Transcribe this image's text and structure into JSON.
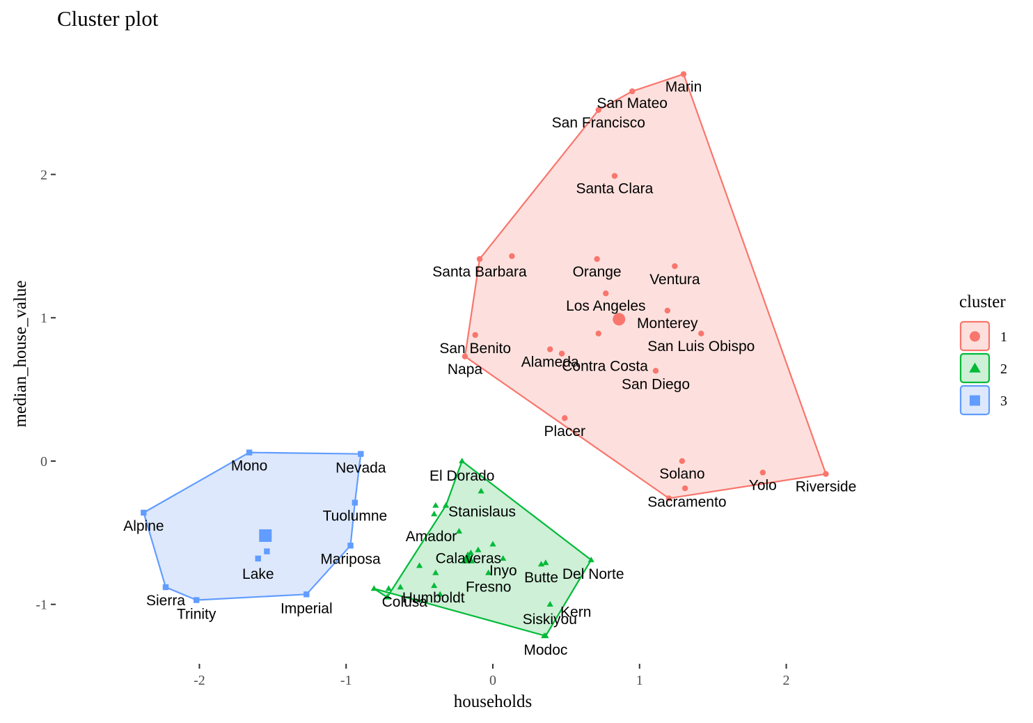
{
  "chart_data": {
    "type": "scatter",
    "title": "Cluster plot",
    "xlabel": "households",
    "ylabel": "median_house_value",
    "xlim": [
      -2.97,
      2.97
    ],
    "ylim": [
      -1.4,
      2.95
    ],
    "xticks": [
      -2,
      -1,
      0,
      1,
      2
    ],
    "yticks": [
      -1,
      0,
      1,
      2
    ],
    "xtick_labels": [
      "-2",
      "-1",
      "0",
      "1",
      "2"
    ],
    "ytick_labels": [
      "-1",
      "0",
      "1",
      "2"
    ],
    "grid": false,
    "legend": {
      "title": "cluster",
      "placement": "right",
      "entries": [
        {
          "label": "1",
          "color": "#F8766D",
          "fill": "#FDE0DD",
          "shape": "circle"
        },
        {
          "label": "2",
          "color": "#00BA38",
          "fill": "#CDF0D6",
          "shape": "triangle"
        },
        {
          "label": "3",
          "color": "#619CFF",
          "fill": "#DDE8FD",
          "shape": "square"
        }
      ]
    },
    "clusters": [
      {
        "name": "1",
        "shape": "circle",
        "color": "#F8766D",
        "fill": "#FDE0DD",
        "center": {
          "x": 0.86,
          "y": 0.99
        },
        "hull": [
          "Marin",
          "Riverside",
          "Sacramento",
          "Napa",
          "Santa Barbara",
          "San Francisco",
          "San Mateo"
        ],
        "points": [
          {
            "label": "Marin",
            "x": 1.3,
            "y": 2.7
          },
          {
            "label": "San Mateo",
            "x": 0.95,
            "y": 2.58
          },
          {
            "label": "San Francisco",
            "x": 0.72,
            "y": 2.45
          },
          {
            "label": "Santa Clara",
            "x": 0.83,
            "y": 1.99
          },
          {
            "label": "Santa Barbara",
            "x": -0.09,
            "y": 1.41
          },
          {
            "label": "",
            "x": 0.13,
            "y": 1.43
          },
          {
            "label": "Orange",
            "x": 0.71,
            "y": 1.41
          },
          {
            "label": "Ventura",
            "x": 1.24,
            "y": 1.36
          },
          {
            "label": "Los Angeles",
            "x": 0.77,
            "y": 1.17
          },
          {
            "label": "Monterey",
            "x": 1.19,
            "y": 1.05
          },
          {
            "label": "San Luis Obispo",
            "x": 1.42,
            "y": 0.89
          },
          {
            "label": "",
            "x": 0.72,
            "y": 0.89
          },
          {
            "label": "San Benito",
            "x": -0.12,
            "y": 0.88
          },
          {
            "label": "Contra Costa",
            "x": 0.47,
            "y": 0.75
          },
          {
            "label": "Alameda",
            "x": 0.39,
            "y": 0.78
          },
          {
            "label": "Napa",
            "x": -0.19,
            "y": 0.73
          },
          {
            "label": "San Diego",
            "x": 1.11,
            "y": 0.63
          },
          {
            "label": "Placer",
            "x": 0.49,
            "y": 0.3
          },
          {
            "label": "Solano",
            "x": 1.29,
            "y": 0.0
          },
          {
            "label": "Yolo",
            "x": 1.84,
            "y": -0.08
          },
          {
            "label": "Riverside",
            "x": 2.27,
            "y": -0.09
          },
          {
            "label": "",
            "x": 1.31,
            "y": -0.19
          },
          {
            "label": "Sacramento",
            "x": 1.2,
            "y": -0.26
          }
        ]
      },
      {
        "name": "2",
        "shape": "triangle",
        "color": "#00BA38",
        "fill": "#CDF0D6",
        "center": {
          "x": -0.17,
          "y": -0.68
        },
        "hull": [
          "El Dorado",
          "Del Norte",
          "Modoc",
          "Colusa",
          "",
          "Stanislaus"
        ],
        "points": [
          {
            "label": "El Dorado",
            "x": -0.21,
            "y": 0.0
          },
          {
            "label": "",
            "x": -0.08,
            "y": -0.21
          },
          {
            "label": "Stanislaus",
            "x": -0.32,
            "y": -0.31
          },
          {
            "label": "",
            "x": -0.39,
            "y": -0.31
          },
          {
            "label": "",
            "x": -0.4,
            "y": -0.37
          },
          {
            "label": "Amador",
            "x": -0.23,
            "y": -0.49
          },
          {
            "label": "",
            "x": 0.0,
            "y": -0.58
          },
          {
            "label": "Calaveras",
            "x": -0.1,
            "y": -0.62
          },
          {
            "label": "",
            "x": -0.15,
            "y": -0.64
          },
          {
            "label": "Inyo",
            "x": 0.07,
            "y": -0.68
          },
          {
            "label": "",
            "x": -0.5,
            "y": -0.73
          },
          {
            "label": "Butte",
            "x": 0.33,
            "y": -0.72
          },
          {
            "label": "",
            "x": 0.36,
            "y": -0.71
          },
          {
            "label": "Del Norte",
            "x": 0.67,
            "y": -0.69
          },
          {
            "label": "",
            "x": -0.39,
            "y": -0.78
          },
          {
            "label": "Fresno",
            "x": -0.03,
            "y": -0.78
          },
          {
            "label": "Humboldt",
            "x": -0.4,
            "y": -0.87
          },
          {
            "label": "",
            "x": -0.63,
            "y": -0.88
          },
          {
            "label": "",
            "x": -0.71,
            "y": -0.89
          },
          {
            "label": "Colusa",
            "x": -0.81,
            "y": -0.89
          },
          {
            "label": "",
            "x": -0.36,
            "y": -0.93
          },
          {
            "label": "",
            "x": -0.72,
            "y": -0.95
          },
          {
            "label": "Kern",
            "x": 0.39,
            "y": -1.0
          },
          {
            "label": "Siskiyou",
            "x": 0.35,
            "y": -1.22
          },
          {
            "label": "Modoc",
            "x": 0.36,
            "y": -1.22
          }
        ]
      },
      {
        "name": "3",
        "shape": "square",
        "color": "#619CFF",
        "fill": "#DDE8FD",
        "center": {
          "x": -1.55,
          "y": -0.52
        },
        "hull": [
          "Mono",
          "Nevada",
          "Tuolumne",
          "Mariposa",
          "Imperial",
          "Trinity",
          "Sierra",
          "Alpine"
        ],
        "points": [
          {
            "label": "Mono",
            "x": -1.66,
            "y": 0.06
          },
          {
            "label": "Nevada",
            "x": -0.9,
            "y": 0.05
          },
          {
            "label": "Tuolumne",
            "x": -0.94,
            "y": -0.29
          },
          {
            "label": "Alpine",
            "x": -2.38,
            "y": -0.36
          },
          {
            "label": "Mariposa",
            "x": -0.97,
            "y": -0.59
          },
          {
            "label": "",
            "x": -1.54,
            "y": -0.63
          },
          {
            "label": "Lake",
            "x": -1.6,
            "y": -0.68
          },
          {
            "label": "Sierra",
            "x": -2.23,
            "y": -0.88
          },
          {
            "label": "Imperial",
            "x": -1.27,
            "y": -0.93
          },
          {
            "label": "Trinity",
            "x": -2.02,
            "y": -0.97
          }
        ]
      }
    ]
  }
}
